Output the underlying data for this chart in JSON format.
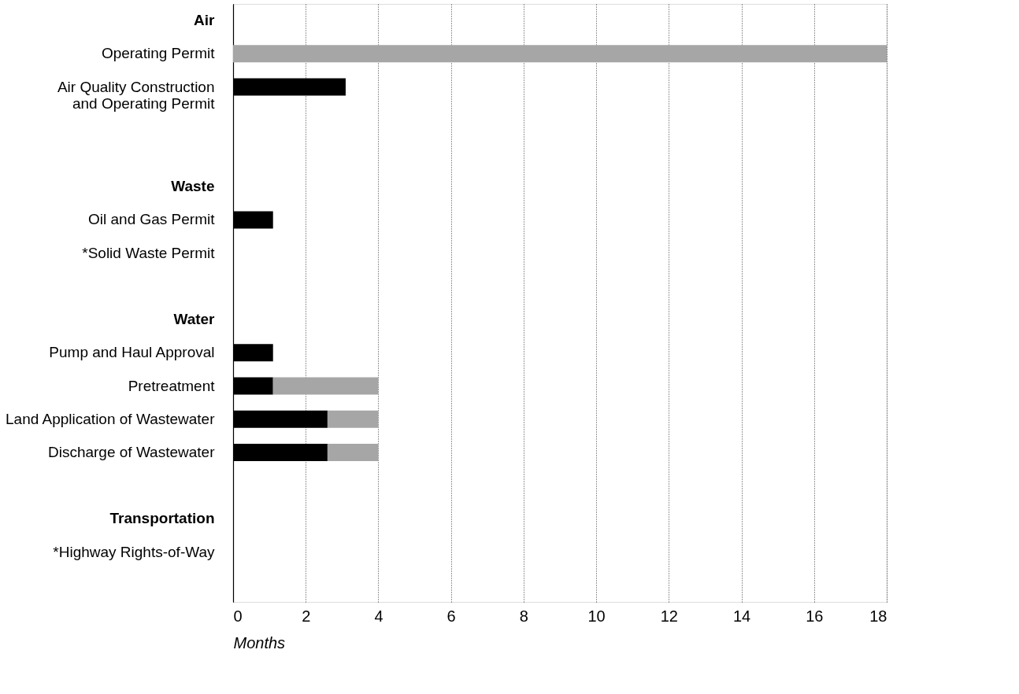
{
  "chart_data": {
    "type": "bar",
    "orientation": "horizontal",
    "stacked": true,
    "categories": [
      "Air",
      "Operating Permit",
      "Air Quality Construction\nand Operating Permit",
      null,
      null,
      "Waste",
      "Oil and Gas Permit",
      "*Solid Waste Permit",
      null,
      "Water",
      "Pump and Haul Approval",
      "Pretreatment",
      "Land Application of Wastewater",
      "Discharge of Wastewater",
      null,
      "Transportation",
      "*Highway Rights-of-Way",
      null
    ],
    "series": [
      {
        "color": "#000000",
        "values": [
          null,
          0,
          3.1,
          null,
          null,
          null,
          1.1,
          null,
          null,
          null,
          1.1,
          1.1,
          2.6,
          2.6,
          null,
          null,
          null,
          null
        ]
      },
      {
        "color": "#a6a6a6",
        "values": [
          null,
          18,
          null,
          null,
          null,
          null,
          null,
          null,
          null,
          null,
          null,
          2.9,
          1.4,
          1.4,
          null,
          null,
          null,
          null
        ]
      }
    ],
    "xlabel": "Months",
    "xlim": [
      0,
      18
    ],
    "xticks": [
      0,
      2,
      4,
      6,
      8,
      10,
      12,
      14,
      16,
      18
    ],
    "grid": "x"
  }
}
